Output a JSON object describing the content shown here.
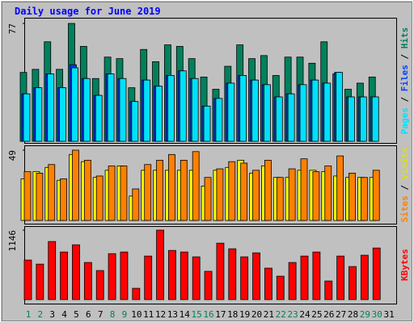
{
  "chart_data": [
    {
      "type": "bar",
      "title": "Daily usage for June 2019",
      "ylim": [
        0,
        77
      ],
      "yticks": [
        77
      ],
      "series": [
        {
          "name": "Hits",
          "color": "#00805c",
          "values": [
            45,
            47,
            65,
            47,
            77,
            62,
            41,
            55,
            54,
            35,
            60,
            52,
            63,
            62,
            54,
            42,
            34,
            49,
            63,
            54,
            56,
            43,
            55,
            55,
            51,
            65,
            44,
            34,
            38,
            42,
            null
          ]
        },
        {
          "name": "Files",
          "color": "#0040ff",
          "values": [
            31,
            35,
            44,
            35,
            50,
            41,
            30,
            44,
            41,
            26,
            40,
            36,
            43,
            46,
            41,
            23,
            28,
            38,
            43,
            40,
            37,
            29,
            31,
            37,
            40,
            38,
            45,
            29,
            29,
            29,
            null
          ]
        },
        {
          "name": "Pages",
          "color": "#00e0ff",
          "values": [
            31,
            35,
            44,
            35,
            48,
            41,
            30,
            44,
            41,
            26,
            40,
            36,
            43,
            46,
            41,
            23,
            28,
            38,
            43,
            40,
            37,
            29,
            31,
            37,
            40,
            38,
            45,
            29,
            29,
            29,
            null
          ]
        }
      ]
    },
    {
      "type": "bar",
      "ylim": [
        0,
        49
      ],
      "yticks": [
        49
      ],
      "series": [
        {
          "name": "Visits",
          "color": "#ffff00",
          "values": [
            29,
            34,
            37,
            28,
            46,
            41,
            30,
            35,
            38,
            17,
            35,
            35,
            35,
            35,
            35,
            24,
            35,
            37,
            42,
            33,
            38,
            30,
            30,
            35,
            35,
            34,
            31,
            30,
            30,
            30,
            null
          ]
        },
        {
          "name": "Sites",
          "color": "#ff8000",
          "values": [
            34,
            33,
            39,
            29,
            49,
            42,
            31,
            38,
            38,
            22,
            39,
            42,
            46,
            42,
            48,
            30,
            36,
            41,
            40,
            35,
            42,
            30,
            36,
            43,
            34,
            38,
            45,
            33,
            30,
            35,
            null
          ]
        }
      ]
    },
    {
      "type": "bar",
      "ylim": [
        0,
        1146
      ],
      "yticks": [
        1146
      ],
      "categories": [
        "1",
        "2",
        "3",
        "4",
        "5",
        "6",
        "7",
        "8",
        "9",
        "10",
        "11",
        "12",
        "13",
        "14",
        "15",
        "16",
        "17",
        "18",
        "19",
        "20",
        "21",
        "22",
        "23",
        "24",
        "25",
        "26",
        "27",
        "28",
        "29",
        "30",
        "31"
      ],
      "label_colors": [
        "#00805c",
        "#00805c",
        "#000000",
        "#000000",
        "#000000",
        "#000000",
        "#000000",
        "#00805c",
        "#00805c",
        "#000000",
        "#000000",
        "#000000",
        "#000000",
        "#000000",
        "#00805c",
        "#00805c",
        "#000000",
        "#000000",
        "#000000",
        "#000000",
        "#000000",
        "#00805c",
        "#00805c",
        "#000000",
        "#000000",
        "#000000",
        "#000000",
        "#000000",
        "#00805c",
        "#00805c",
        "#000000"
      ],
      "series": [
        {
          "name": "KBytes",
          "color": "#ff0000",
          "values": [
            652,
            585,
            958,
            785,
            904,
            612,
            479,
            758,
            785,
            186,
            718,
            1146,
            811,
            785,
            705,
            466,
            931,
            838,
            705,
            771,
            519,
            386,
            612,
            718,
            785,
            306,
            718,
            545,
            732,
            851,
            null
          ]
        }
      ]
    }
  ]
}
